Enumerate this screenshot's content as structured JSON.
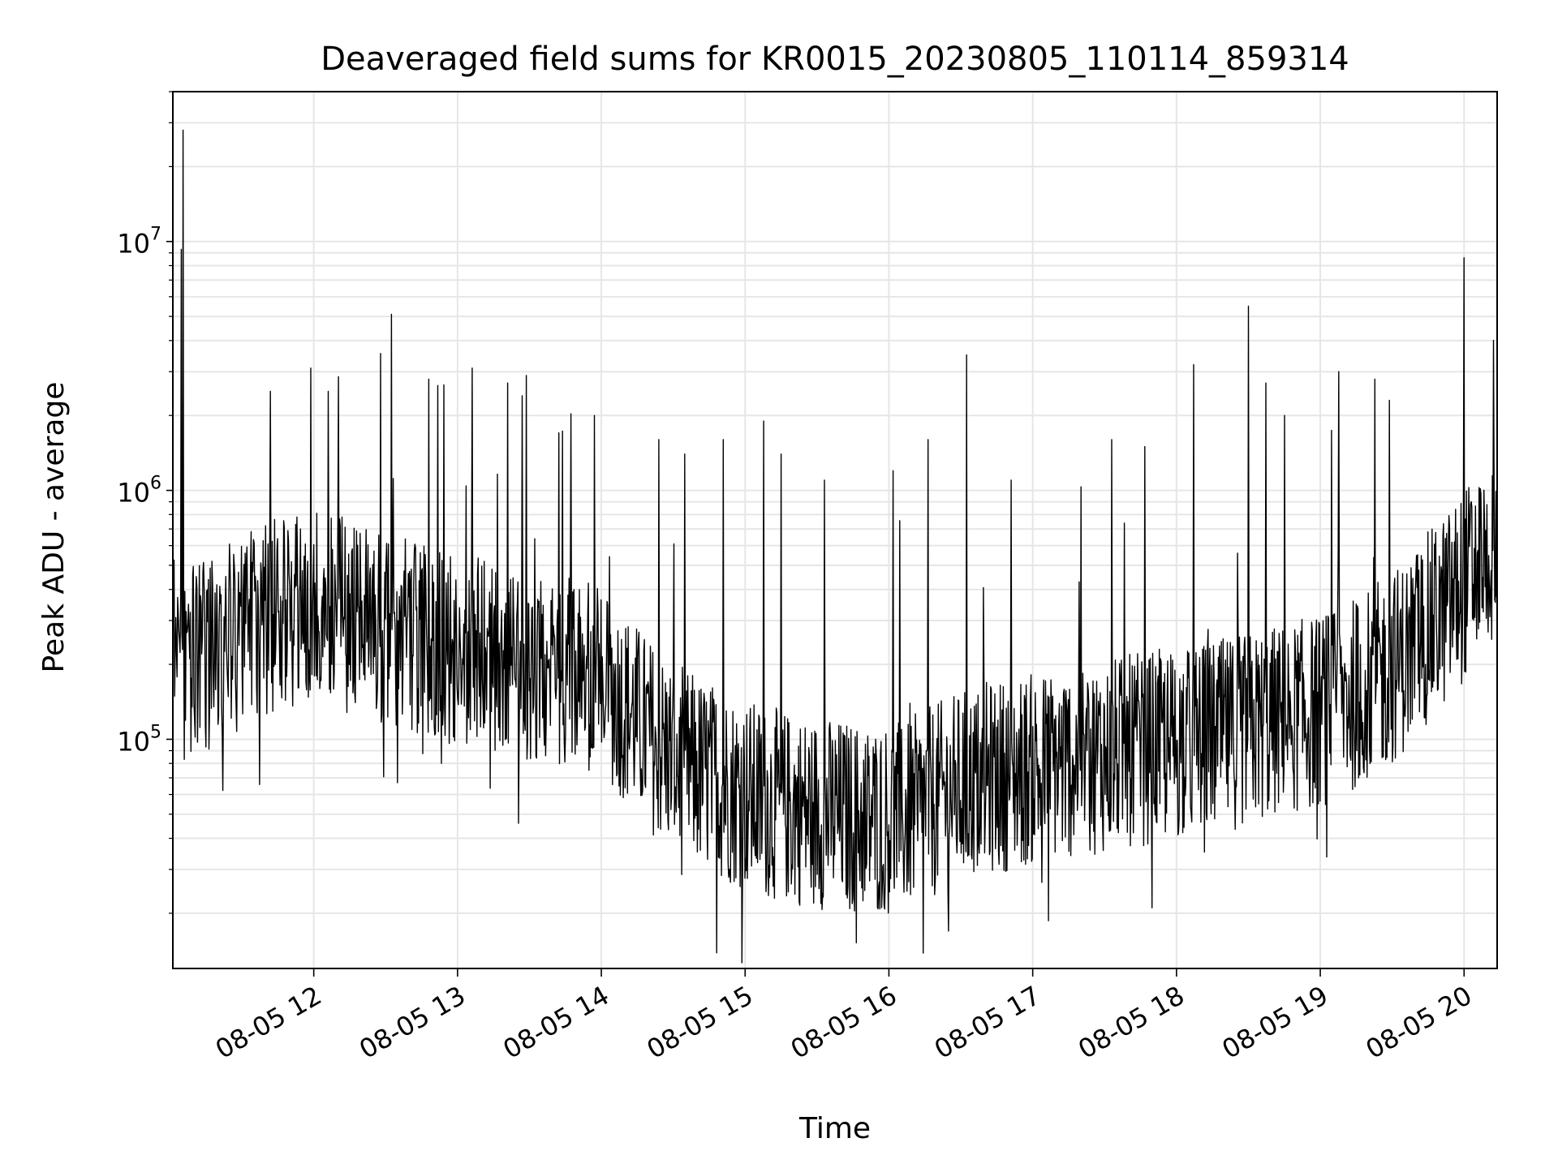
{
  "chart_data": {
    "type": "line",
    "title": "Deaveraged field sums for KR0015_20230805_110114_859314",
    "xlabel": "Time",
    "ylabel": "Peak ADU - average",
    "yscale": "log",
    "x_range": [
      "08-05 11:01",
      "08-05 20:14"
    ],
    "ylim": [
      12000,
      40000000
    ],
    "grid": true,
    "line_color": "#000000",
    "grid_color": "#e6e6e6",
    "x_ticks": [
      {
        "hour": 12,
        "label": "08-05 12"
      },
      {
        "hour": 13,
        "label": "08-05 13"
      },
      {
        "hour": 14,
        "label": "08-05 14"
      },
      {
        "hour": 15,
        "label": "08-05 15"
      },
      {
        "hour": 16,
        "label": "08-05 16"
      },
      {
        "hour": 17,
        "label": "08-05 17"
      },
      {
        "hour": 18,
        "label": "08-05 18"
      },
      {
        "hour": 19,
        "label": "08-05 19"
      },
      {
        "hour": 20,
        "label": "08-05 20"
      }
    ],
    "y_ticks": [
      {
        "value": 100000,
        "base": "10",
        "exp": "5"
      },
      {
        "value": 1000000,
        "base": "10",
        "exp": "6"
      },
      {
        "value": 10000000,
        "base": "10",
        "exp": "7"
      }
    ],
    "series": [
      {
        "x_hours": [
          11.02,
          11.1,
          11.2,
          11.3,
          11.4,
          11.5,
          11.6,
          11.7,
          11.8,
          11.9,
          12.0,
          12.1,
          12.2,
          12.3,
          12.4,
          12.5,
          12.6,
          12.7,
          12.8,
          12.9,
          13.0,
          13.1,
          13.2,
          13.3,
          13.4,
          13.5,
          13.6,
          13.7,
          13.8,
          13.9,
          14.0,
          14.1,
          14.2,
          14.3,
          14.4,
          14.5,
          14.6,
          14.7,
          14.8,
          14.9,
          15.0,
          15.1,
          15.2,
          15.3,
          15.4,
          15.5,
          15.6,
          15.7,
          15.8,
          15.9,
          16.0,
          16.1,
          16.2,
          16.3,
          16.4,
          16.5,
          16.6,
          16.7,
          16.8,
          16.9,
          17.0,
          17.1,
          17.2,
          17.3,
          17.4,
          17.5,
          17.6,
          17.7,
          17.8,
          17.9,
          18.0,
          18.1,
          18.2,
          18.3,
          18.4,
          18.5,
          18.6,
          18.7,
          18.8,
          18.9,
          19.0,
          19.1,
          19.2,
          19.3,
          19.4,
          19.5,
          19.6,
          19.7,
          19.8,
          19.9,
          20.0,
          20.1,
          20.2,
          20.23
        ],
        "trend": [
          350000,
          200000,
          210000,
          230000,
          250000,
          270000,
          290000,
          310000,
          320000,
          330000,
          340000,
          330000,
          320000,
          300000,
          290000,
          280000,
          270000,
          260000,
          250000,
          240000,
          230000,
          220000,
          215000,
          210000,
          205000,
          200000,
          195000,
          190000,
          185000,
          180000,
          170000,
          150000,
          130000,
          110000,
          95000,
          85000,
          78000,
          72000,
          68000,
          64000,
          60000,
          57000,
          55000,
          53000,
          52000,
          51000,
          50000,
          49000,
          48000,
          48000,
          48000,
          49000,
          52000,
          56000,
          60000,
          64000,
          67000,
          70000,
          72000,
          74000,
          76000,
          78000,
          80000,
          82000,
          84000,
          86000,
          88000,
          90000,
          92000,
          94000,
          96000,
          98000,
          100000,
          103000,
          106000,
          110000,
          114000,
          118000,
          122000,
          126000,
          130000,
          138000,
          148000,
          160000,
          175000,
          195000,
          220000,
          260000,
          300000,
          350000,
          420000,
          500000,
          550000,
          500000
        ],
        "spikes": [
          {
            "hour": 11.09,
            "value": 28000000
          },
          {
            "hour": 11.08,
            "value": 9300000
          },
          {
            "hour": 12.54,
            "value": 5100000
          },
          {
            "hour": 11.98,
            "value": 3100000
          },
          {
            "hour": 12.1,
            "value": 2500000
          },
          {
            "hour": 12.8,
            "value": 2800000
          },
          {
            "hour": 13.1,
            "value": 3100000
          },
          {
            "hour": 13.35,
            "value": 2700000
          },
          {
            "hour": 13.45,
            "value": 2400000
          },
          {
            "hour": 13.95,
            "value": 2000000
          },
          {
            "hour": 14.85,
            "value": 1600000
          },
          {
            "hour": 15.13,
            "value": 1900000
          },
          {
            "hour": 15.55,
            "value": 1100000
          },
          {
            "hour": 16.03,
            "value": 1200000
          },
          {
            "hour": 16.27,
            "value": 1600000
          },
          {
            "hour": 16.54,
            "value": 3500000
          },
          {
            "hour": 16.85,
            "value": 1100000
          },
          {
            "hour": 17.55,
            "value": 1600000
          },
          {
            "hour": 17.78,
            "value": 1500000
          },
          {
            "hour": 18.12,
            "value": 3200000
          },
          {
            "hour": 18.5,
            "value": 5500000
          },
          {
            "hour": 18.62,
            "value": 2700000
          },
          {
            "hour": 18.75,
            "value": 2000000
          },
          {
            "hour": 19.13,
            "value": 3000000
          },
          {
            "hour": 19.38,
            "value": 2800000
          },
          {
            "hour": 19.48,
            "value": 2300000
          },
          {
            "hour": 20.0,
            "value": 8600000
          },
          {
            "hour": 15.25,
            "value": 1400000
          },
          {
            "hour": 14.4,
            "value": 1600000
          },
          {
            "hour": 11.7,
            "value": 2500000
          }
        ]
      }
    ]
  }
}
